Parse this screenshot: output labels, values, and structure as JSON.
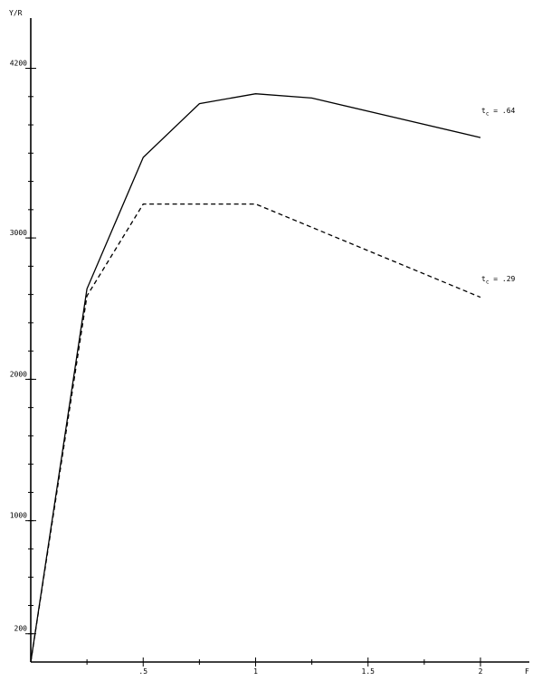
{
  "chart_data": {
    "type": "line",
    "ylabel": "Y/R",
    "xlabel": "F",
    "xlim": [
      0,
      2.1
    ],
    "ylim": [
      0,
      4300
    ],
    "x_ticks": [
      {
        "value": 0.5,
        "label": ".5"
      },
      {
        "value": 1,
        "label": "1"
      },
      {
        "value": 1.5,
        "label": "1.5"
      },
      {
        "value": 2,
        "label": "2"
      }
    ],
    "x_minor_ticks": [
      0.25,
      0.75,
      1.25,
      1.75
    ],
    "y_ticks": [
      {
        "value": 200,
        "label": "200"
      },
      {
        "value": 1000,
        "label": "1000"
      },
      {
        "value": 2000,
        "label": "2000"
      },
      {
        "value": 3000,
        "label": "3000"
      },
      {
        "value": 4200,
        "label": "4200"
      }
    ],
    "y_minor_step": 200,
    "grid": false,
    "series": [
      {
        "name": "t_c = .64",
        "style": "solid",
        "x": [
          0,
          0.25,
          0.5,
          0.75,
          1.0,
          1.25,
          2.0
        ],
        "y": [
          0,
          2640,
          3570,
          3950,
          4020,
          3990,
          3710
        ]
      },
      {
        "name": "t_c = .29",
        "style": "dashed",
        "x": [
          0,
          0.25,
          0.5,
          1.0,
          2.0
        ],
        "y": [
          0,
          2590,
          3240,
          3240,
          2580
        ]
      }
    ],
    "series_labels": [
      {
        "prefix": "t",
        "sub": "c",
        "suffix": " = .64"
      },
      {
        "prefix": "t",
        "sub": "c",
        "suffix": " = .29"
      }
    ]
  }
}
